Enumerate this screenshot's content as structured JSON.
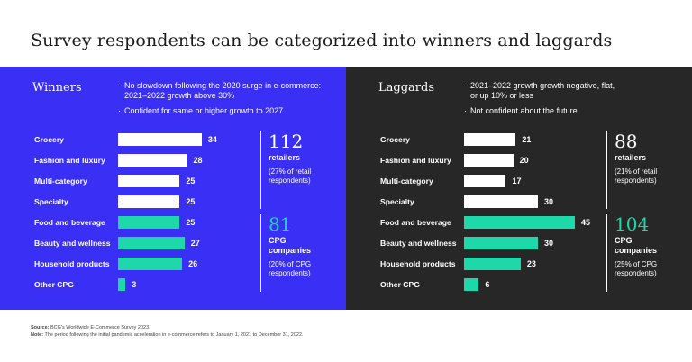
{
  "title": "Survey respondents can be categorized into winners and laggards",
  "colors": {
    "winners_bg": "#3a2ff5",
    "laggards_bg": "#272727",
    "retail_bar": "#ffffff",
    "cpg_bar": "#1fd8aa",
    "cpg_stat": "#1fd8aa"
  },
  "chart_data": [
    {
      "type": "bar",
      "title": "Winners",
      "orientation": "horizontal",
      "criteria": [
        "No slowdown following the 2020 surge in e-commerce: 2021–2022 growth above 30%",
        "Confident for same or higher growth to 2027"
      ],
      "categories": [
        "Grocery",
        "Fashion and luxury",
        "Multi-category",
        "Specialty",
        "Food and beverage",
        "Beauty and wellness",
        "Household products",
        "Other CPG"
      ],
      "values": [
        34,
        28,
        25,
        25,
        25,
        27,
        26,
        3
      ],
      "groups": [
        "retail",
        "retail",
        "retail",
        "retail",
        "cpg",
        "cpg",
        "cpg",
        "cpg"
      ],
      "xlim": [
        0,
        45
      ],
      "summary": [
        {
          "value": "112",
          "unit": "retailers",
          "note": "(27% of retail respondents)"
        },
        {
          "value": "81",
          "unit": "CPG companies",
          "note": "(20% of CPG respondents)"
        }
      ]
    },
    {
      "type": "bar",
      "title": "Laggards",
      "orientation": "horizontal",
      "criteria": [
        "2021–2022 growth growth negative, flat, or up 10% or less",
        "Not confident about the future"
      ],
      "categories": [
        "Grocery",
        "Fashion and luxury",
        "Multi-category",
        "Specialty",
        "Food and beverage",
        "Beauty and wellness",
        "Household products",
        "Other CPG"
      ],
      "values": [
        21,
        20,
        17,
        30,
        45,
        30,
        23,
        6
      ],
      "groups": [
        "retail",
        "retail",
        "retail",
        "retail",
        "cpg",
        "cpg",
        "cpg",
        "cpg"
      ],
      "xlim": [
        0,
        45
      ],
      "summary": [
        {
          "value": "88",
          "unit": "retailers",
          "note": "(21% of retail respondents)"
        },
        {
          "value": "104",
          "unit": "CPG companies",
          "note": "(25% of CPG respondents)"
        }
      ]
    }
  ],
  "footer": {
    "source_label": "Source:",
    "source_text": "BCG's Worldwide E-Commerce Survey 2023.",
    "note_label": "Note:",
    "note_text": "The period following the initial pandemic acceleration in e-commerce refers to January 1, 2021 to December 31, 2022."
  }
}
